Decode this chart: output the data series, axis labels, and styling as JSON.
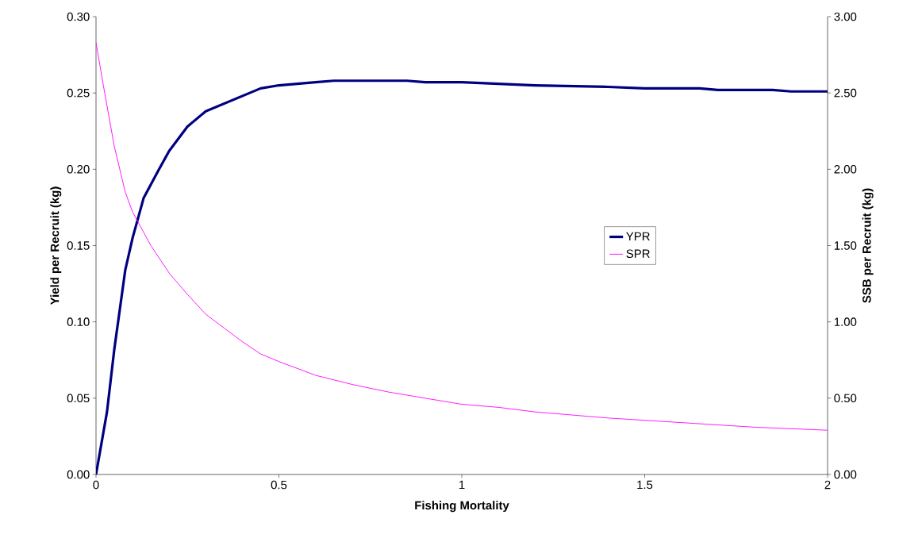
{
  "chart_data": {
    "type": "line",
    "xlabel": "Fishing Mortality",
    "ylabel": "Yield per Recruit (kg)",
    "y2label": "SSB per Recruit (kg)",
    "xlim": [
      0,
      2
    ],
    "xticks": [
      0,
      0.5,
      1,
      1.5,
      2
    ],
    "ylim": [
      0,
      0.3
    ],
    "yticks": [
      {
        "value": 0,
        "label": "0.00"
      },
      {
        "value": 0.05,
        "label": "0.05"
      },
      {
        "value": 0.1,
        "label": "0.10"
      },
      {
        "value": 0.15,
        "label": "0.15"
      },
      {
        "value": 0.2,
        "label": "0.20"
      },
      {
        "value": 0.25,
        "label": "0.25"
      },
      {
        "value": 0.3,
        "label": "0.30"
      }
    ],
    "y2lim": [
      0,
      3
    ],
    "y2ticks": [
      {
        "value": 0,
        "label": "0.00"
      },
      {
        "value": 0.5,
        "label": "0.50"
      },
      {
        "value": 1,
        "label": "1.00"
      },
      {
        "value": 1.5,
        "label": "1.50"
      },
      {
        "value": 2,
        "label": "2.00"
      },
      {
        "value": 2.5,
        "label": "2.50"
      },
      {
        "value": 3,
        "label": "3.00"
      }
    ],
    "legend": "right",
    "marker": "none",
    "line_style": "solid",
    "series": [
      {
        "name": "YPR",
        "color": "#000080",
        "x": [
          0,
          0.03,
          0.05,
          0.08,
          0.1,
          0.13,
          0.17,
          0.2,
          0.25,
          0.3,
          0.4,
          0.45,
          0.5,
          0.6,
          0.65,
          0.85,
          0.9,
          1.0,
          1.2,
          1.4,
          1.5,
          1.65,
          1.7,
          1.85,
          1.9,
          2.0
        ],
        "values": [
          0,
          0.041,
          0.082,
          0.134,
          0.155,
          0.181,
          0.199,
          0.212,
          0.228,
          0.238,
          0.248,
          0.253,
          0.255,
          0.257,
          0.258,
          0.258,
          0.257,
          0.257,
          0.255,
          0.254,
          0.253,
          0.253,
          0.252,
          0.252,
          0.251,
          0.251
        ]
      },
      {
        "name": "SPR",
        "color": "#ff00ff",
        "axis": "y2",
        "x": [
          0,
          0.02,
          0.05,
          0.08,
          0.1,
          0.15,
          0.2,
          0.25,
          0.3,
          0.35,
          0.4,
          0.45,
          0.5,
          0.6,
          0.7,
          0.8,
          0.9,
          1.0,
          1.1,
          1.2,
          1.4,
          1.6,
          1.8,
          2.0
        ],
        "values": [
          2.83,
          2.55,
          2.15,
          1.85,
          1.72,
          1.5,
          1.32,
          1.18,
          1.05,
          0.96,
          0.87,
          0.79,
          0.74,
          0.65,
          0.59,
          0.54,
          0.5,
          0.46,
          0.44,
          0.41,
          0.37,
          0.34,
          0.31,
          0.29
        ]
      }
    ]
  }
}
